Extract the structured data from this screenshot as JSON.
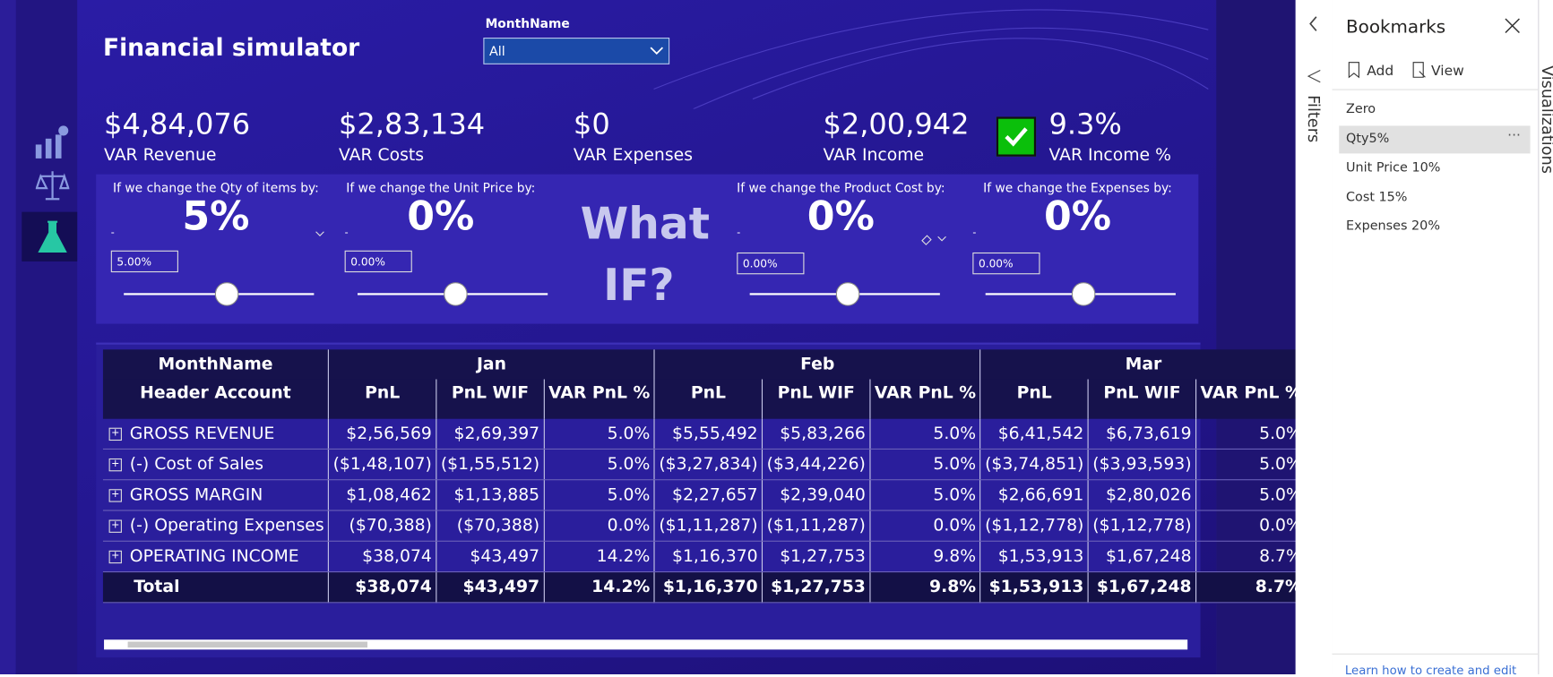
{
  "header": {
    "title": "Financial simulator",
    "month_filter": {
      "label": "MonthName",
      "value": "All"
    }
  },
  "kpis": [
    {
      "value": "$4,84,076",
      "label": "VAR Revenue"
    },
    {
      "value": "$2,83,134",
      "label": "VAR Costs"
    },
    {
      "value": "$0",
      "label": "VAR Expenses"
    },
    {
      "value": "$2,00,942",
      "label": "VAR Income"
    },
    {
      "value": "9.3%",
      "label": "VAR Income %"
    }
  ],
  "sliders": [
    {
      "prompt": "If we change the Qty of items by:",
      "value": "5%",
      "min": "-",
      "input": "5.00%"
    },
    {
      "prompt": "If we change the Unit Price by:",
      "value": "0%",
      "min": "-",
      "input": "0.00%"
    },
    {
      "prompt": "If we change the Product Cost by:",
      "value": "0%",
      "min": "-",
      "input": "0.00%"
    },
    {
      "prompt": "If we change the Expenses by:",
      "value": "0%",
      "min": "-",
      "input": "0.00%"
    }
  ],
  "what_if": [
    "What",
    "IF?"
  ],
  "table": {
    "header_row1": [
      "MonthName",
      "Jan",
      "Feb",
      "Mar"
    ],
    "header_row2": [
      "Header Account",
      "PnL",
      "PnL WIF",
      "VAR PnL %",
      "PnL",
      "PnL WIF",
      "VAR PnL %",
      "PnL",
      "PnL WIF",
      "VAR PnL %"
    ],
    "rows": [
      [
        "GROSS REVENUE",
        "$2,56,569",
        "$2,69,397",
        "5.0%",
        "$5,55,492",
        "$5,83,266",
        "5.0%",
        "$6,41,542",
        "$6,73,619",
        "5.0%"
      ],
      [
        "(-) Cost of Sales",
        "($1,48,107)",
        "($1,55,512)",
        "5.0%",
        "($3,27,834)",
        "($3,44,226)",
        "5.0%",
        "($3,74,851)",
        "($3,93,593)",
        "5.0%"
      ],
      [
        "GROSS MARGIN",
        "$1,08,462",
        "$1,13,885",
        "5.0%",
        "$2,27,657",
        "$2,39,040",
        "5.0%",
        "$2,66,691",
        "$2,80,026",
        "5.0%"
      ],
      [
        "(-) Operating Expenses",
        "($70,388)",
        "($70,388)",
        "0.0%",
        "($1,11,287)",
        "($1,11,287)",
        "0.0%",
        "($1,12,778)",
        "($1,12,778)",
        "0.0%"
      ],
      [
        "OPERATING INCOME",
        "$38,074",
        "$43,497",
        "14.2%",
        "$1,16,370",
        "$1,27,753",
        "9.8%",
        "$1,53,913",
        "$1,67,248",
        "8.7%"
      ]
    ],
    "total": [
      "Total",
      "$38,074",
      "$43,497",
      "14.2%",
      "$1,16,370",
      "$1,27,753",
      "9.8%",
      "$1,53,913",
      "$1,67,248",
      "8.7%"
    ]
  },
  "filters_pane": {
    "title": "Filters"
  },
  "bookmarks": {
    "title": "Bookmarks",
    "actions": [
      "Add",
      "View"
    ],
    "items": [
      "Zero",
      "Qty5%",
      "Unit Price 10%",
      "Cost 15%",
      "Expenses 20%"
    ],
    "footer": "Learn how to create and edit"
  },
  "visualizations_pane": {
    "title": "Visualizations"
  }
}
